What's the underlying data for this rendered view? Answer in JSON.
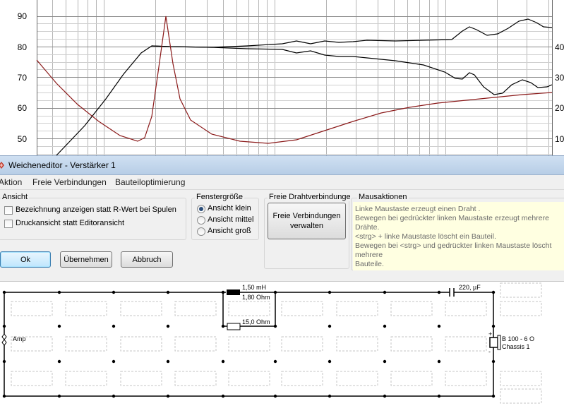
{
  "graph": {
    "left_axis_ticks": [
      "90",
      "80",
      "70",
      "60",
      "50"
    ],
    "right_axis_ticks": [
      "40",
      "30",
      "20",
      "10"
    ],
    "colors": {
      "spl": "#000000",
      "impedance": "#8b1a1a",
      "grid": "#b5b5b5"
    }
  },
  "window": {
    "title": "Weicheneditor - Verstärker 1",
    "icon": "app-icon"
  },
  "menu": {
    "items": [
      "Aktion",
      "Freie Verbindungen",
      "Bauteiloptimierung"
    ]
  },
  "ansicht": {
    "legend": "Ansicht",
    "options": [
      {
        "label": "Bezeichnung anzeigen statt R-Wert bei Spulen",
        "checked": false
      },
      {
        "label": "Druckansicht statt Editoransicht",
        "checked": false
      }
    ]
  },
  "fenstergroesse": {
    "legend": "Fenstergröße",
    "options": [
      {
        "label": "Ansicht klein",
        "selected": true
      },
      {
        "label": "Ansicht mittel",
        "selected": false
      },
      {
        "label": "Ansicht groß",
        "selected": false
      }
    ]
  },
  "draht": {
    "legend": "Freie Drahtverbindunge",
    "button_line1": "Freie Verbindungen",
    "button_line2": "verwalten"
  },
  "mausaktionen": {
    "legend": "Mausaktionen",
    "lines": [
      "Linke Maustaste erzeugt einen Draht .",
      "Bewegen bei gedrückter linken Maustaste erzeugt mehrere",
      "Drähte.",
      " <strg> + linke Maustaste löscht ein Bauteil.",
      "Bewegen bei <strg> und gedrückter linken Maustaste löscht",
      "mehrere",
      "Bauteile."
    ]
  },
  "buttons": {
    "ok": "Ok",
    "apply": "Übernehmen",
    "cancel": "Abbruch"
  },
  "circuit": {
    "inductor_value": "1,50 mH",
    "inductor_resistance": "1,80 Ohm",
    "resistor_value": "15,0 Ohm",
    "capacitor_value": "220, µF",
    "amp_label": "Amp",
    "speaker_name": "B 100 - 6 O",
    "speaker_chassis": "Chassis 1",
    "plus_sign": "+",
    "minus_sign": "-"
  }
}
